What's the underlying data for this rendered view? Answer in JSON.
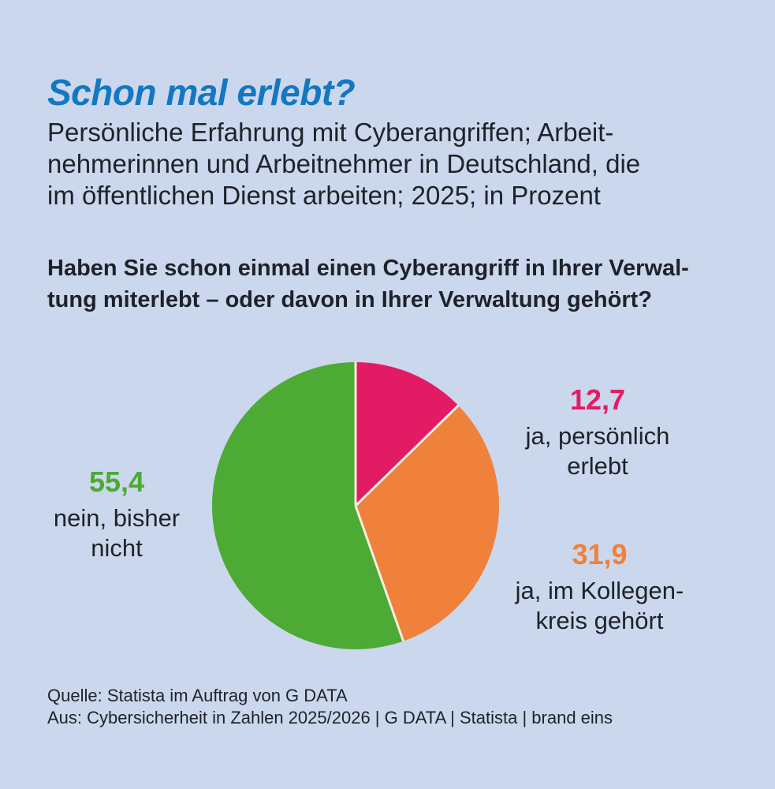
{
  "header": {
    "title": "Schon mal erlebt?",
    "subtitle": "Persönliche Erfahrung mit Cyberangriffen; Arbeit-\nnehmerinnen und Arbeitnehmer in Deutschland, die\nim öffentlichen Dienst arbeiten; 2025; in Prozent",
    "question": "Haben Sie schon einmal einen Cyberangriff in Ihrer Verwal-\ntung miterlebt – oder davon in Ihrer Verwaltung gehört?"
  },
  "chart_data": {
    "type": "pie",
    "title": "Schon mal erlebt?",
    "unit": "Prozent",
    "start_angle_deg": 0,
    "direction": "clockwise",
    "separator_color": "#f3efdf",
    "slices": [
      {
        "label": "ja, persönlich erlebt",
        "value": 12.7,
        "value_text": "12,7",
        "display": "ja, persönlich\nerlebt",
        "color": "#e31b64"
      },
      {
        "label": "ja, im Kollegenkreis gehört",
        "value": 31.9,
        "value_text": "31,9",
        "display": "ja, im Kollegen-\nkreis gehört",
        "color": "#ef813b"
      },
      {
        "label": "nein, bisher nicht",
        "value": 55.4,
        "value_text": "55,4",
        "display": "nein, bisher\nnicht",
        "color": "#4caa35"
      }
    ]
  },
  "footer": {
    "source_line1": "Quelle: Statista im Auftrag von G DATA",
    "source_line2": "Aus: Cybersicherheit in Zahlen 2025/2026 | G DATA | Statista | brand eins"
  },
  "colors": {
    "background": "#cbd7ec",
    "title_blue": "#1377c1",
    "text_dark": "#1e2229"
  }
}
